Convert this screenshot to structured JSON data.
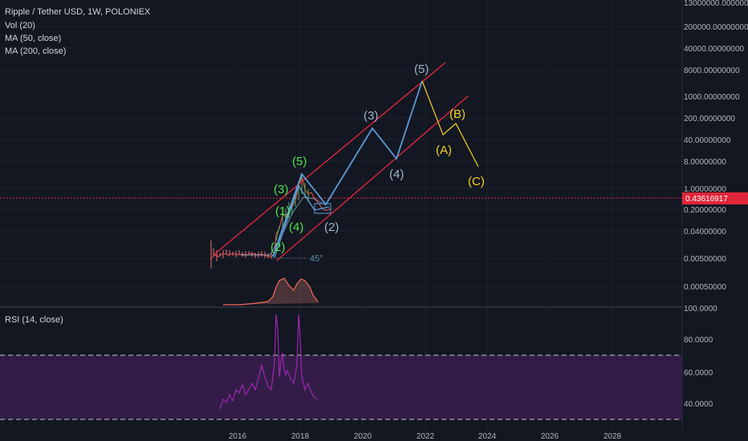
{
  "header": {
    "title": "Ripple / Tether USD, 1W, POLONIEX",
    "indicators": [
      "Vol (20)",
      "MA (50, close)",
      "MA (200, close)"
    ]
  },
  "rsi_panel": {
    "label": "RSI (14, close)"
  },
  "price_axis": {
    "ticks": [
      "13000000.00000000",
      "200000.00000000",
      "40000.00000000",
      "8000.00000000",
      "1000.00000000",
      "200.00000000",
      "40.00000000",
      "8.00000000",
      "1.00000000",
      "0.20000000",
      "0.04000000",
      "0.00500000",
      "0.00050000"
    ],
    "current_price": "0.43616917"
  },
  "rsi_axis": {
    "ticks": [
      "100.0000",
      "80.0000",
      "60.0000",
      "40.0000"
    ]
  },
  "time_axis": {
    "ticks": [
      "2016",
      "2018",
      "2020",
      "2022",
      "2024",
      "2026",
      "2028"
    ]
  },
  "annotations": {
    "green_waves": [
      "(1)",
      "(2)",
      "(3)",
      "(4)",
      "(5)"
    ],
    "blue_waves": [
      "(2)",
      "(3)",
      "(4)",
      "(5)"
    ],
    "yellow_waves": [
      "(A)",
      "(B)",
      "(C)"
    ],
    "angle": "45°"
  },
  "colors": {
    "background": "#131722",
    "grid": "#1e2230",
    "axis_text": "#d1d4dc",
    "channel": "#e0263a",
    "blue_path": "#5b9bd5",
    "yellow_path": "#f5d41f",
    "green_label": "#4be34b",
    "rsi": "#9c27b0",
    "rsi_band": "#3a1f4f",
    "price_line": "#e0263a"
  }
}
